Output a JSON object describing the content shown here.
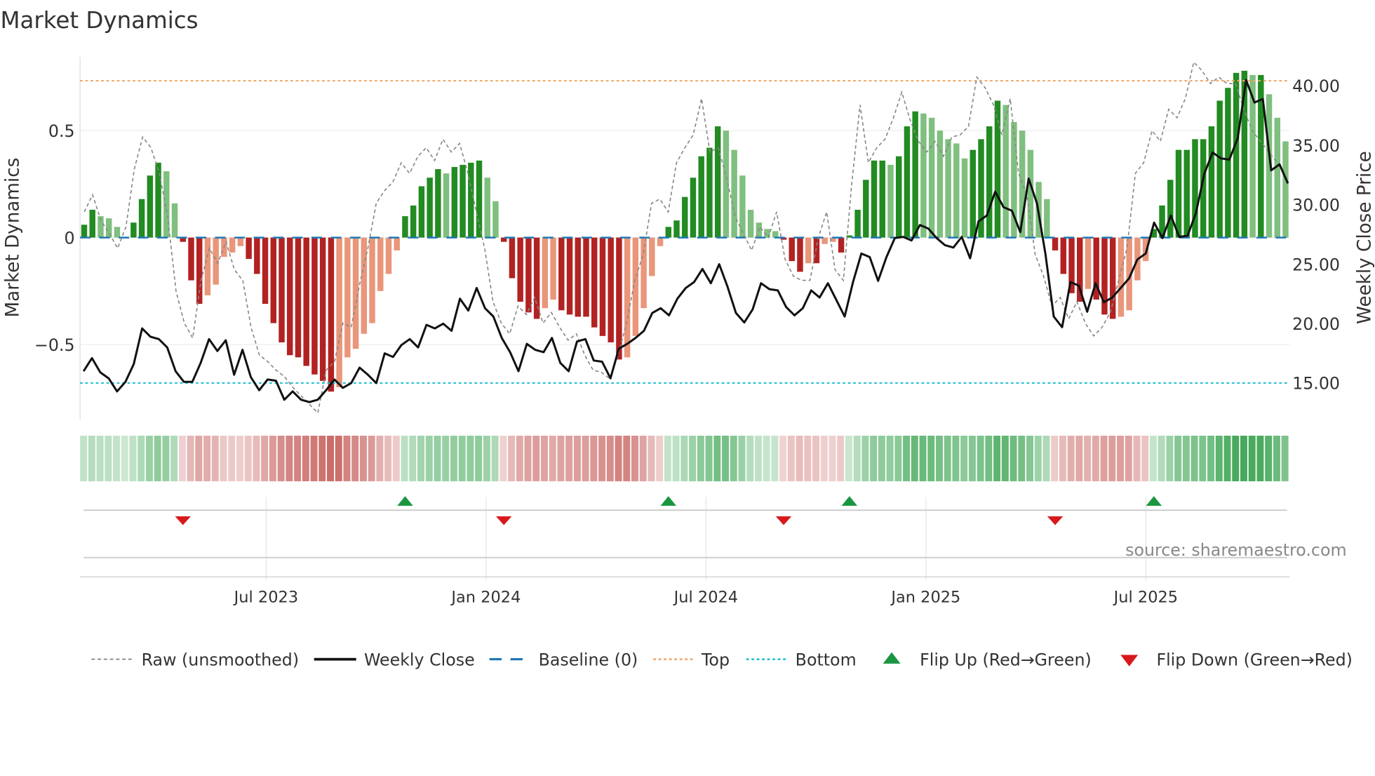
{
  "chart_data": {
    "type": "bar",
    "title": "Market Dynamics",
    "ylabel": "Market Dynamics",
    "y2label": "Weekly Close Price",
    "ylim": [
      -0.82,
      0.86
    ],
    "y2lim": [
      12.5,
      43.0
    ],
    "yticks": [
      {
        "v": 0.5,
        "label": "0.5"
      },
      {
        "v": 0,
        "label": "0"
      },
      {
        "v": -0.5,
        "label": "−0.5"
      }
    ],
    "y2ticks": [
      {
        "v": 40,
        "label": "40.00"
      },
      {
        "v": 35,
        "label": "35.00"
      },
      {
        "v": 30,
        "label": "30.00"
      },
      {
        "v": 25,
        "label": "25.00"
      },
      {
        "v": 20,
        "label": "20.00"
      },
      {
        "v": 15,
        "label": "15.00"
      }
    ],
    "x_start_week": 0,
    "x_weeks_total": 143,
    "xticks": [
      {
        "week": 22,
        "label": "Jul 2023"
      },
      {
        "week": 48,
        "label": "Jan 2024"
      },
      {
        "week": 74,
        "label": "Jul 2024"
      },
      {
        "week": 100,
        "label": "Jan 2025"
      },
      {
        "week": 126,
        "label": "Jul 2025"
      }
    ],
    "top": 0.733,
    "bottom": -0.68,
    "baseline": 0,
    "dynamics": [
      0.06,
      0.13,
      0.1,
      0.09,
      0.05,
      0.0,
      0.07,
      0.18,
      0.29,
      0.35,
      0.31,
      0.16,
      -0.02,
      -0.2,
      -0.31,
      -0.27,
      -0.22,
      -0.09,
      -0.07,
      -0.04,
      -0.1,
      -0.17,
      -0.31,
      -0.4,
      -0.49,
      -0.55,
      -0.56,
      -0.6,
      -0.64,
      -0.67,
      -0.72,
      -0.7,
      -0.56,
      -0.52,
      -0.45,
      -0.4,
      -0.25,
      -0.17,
      -0.06,
      0.1,
      0.15,
      0.24,
      0.28,
      0.32,
      0.3,
      0.33,
      0.34,
      0.35,
      0.36,
      0.28,
      0.17,
      -0.02,
      -0.19,
      -0.3,
      -0.35,
      -0.38,
      -0.33,
      -0.29,
      -0.34,
      -0.36,
      -0.37,
      -0.37,
      -0.42,
      -0.46,
      -0.49,
      -0.57,
      -0.56,
      -0.46,
      -0.33,
      -0.18,
      -0.04,
      0.05,
      0.08,
      0.19,
      0.28,
      0.38,
      0.42,
      0.52,
      0.5,
      0.41,
      0.29,
      0.13,
      0.07,
      0.04,
      0.03,
      -0.01,
      -0.11,
      -0.16,
      -0.12,
      -0.12,
      -0.03,
      -0.02,
      -0.07,
      0.01,
      0.13,
      0.27,
      0.36,
      0.36,
      0.34,
      0.38,
      0.52,
      0.59,
      0.58,
      0.56,
      0.5,
      0.46,
      0.44,
      0.37,
      0.41,
      0.46,
      0.52,
      0.64,
      0.62,
      0.54,
      0.5,
      0.41,
      0.26,
      0.18,
      -0.06,
      -0.17,
      -0.26,
      -0.3,
      -0.24,
      -0.29,
      -0.36,
      -0.38,
      -0.37,
      -0.34,
      -0.2,
      -0.11,
      0.04,
      0.15,
      0.27,
      0.41,
      0.41,
      0.46,
      0.46,
      0.52,
      0.64,
      0.7,
      0.77,
      0.78,
      0.76,
      0.76,
      0.67,
      0.56,
      0.45
    ],
    "raw": [
      0.12,
      0.2,
      0.08,
      0.02,
      -0.05,
      0.05,
      0.32,
      0.47,
      0.42,
      0.3,
      0.1,
      -0.25,
      -0.4,
      -0.47,
      -0.2,
      -0.05,
      -0.12,
      -0.02,
      -0.15,
      -0.2,
      -0.42,
      -0.55,
      -0.58,
      -0.62,
      -0.65,
      -0.7,
      -0.74,
      -0.78,
      -0.82,
      -0.62,
      -0.58,
      -0.4,
      -0.42,
      -0.22,
      -0.05,
      0.16,
      0.22,
      0.26,
      0.35,
      0.3,
      0.38,
      0.42,
      0.36,
      0.46,
      0.4,
      0.44,
      0.3,
      0.12,
      -0.05,
      -0.3,
      -0.4,
      -0.45,
      -0.32,
      -0.36,
      -0.28,
      -0.4,
      -0.35,
      -0.42,
      -0.48,
      -0.45,
      -0.55,
      -0.62,
      -0.63,
      -0.66,
      -0.55,
      -0.4,
      -0.2,
      -0.08,
      0.16,
      0.18,
      0.12,
      0.35,
      0.42,
      0.48,
      0.65,
      0.4,
      0.42,
      0.28,
      0.1,
      0.02,
      -0.06,
      0.05,
      0.0,
      0.12,
      -0.1,
      -0.18,
      -0.2,
      -0.2,
      0.0,
      0.12,
      -0.15,
      -0.2,
      0.25,
      0.62,
      0.35,
      0.42,
      0.46,
      0.56,
      0.68,
      0.55,
      0.45,
      0.4,
      0.45,
      0.38,
      0.47,
      0.48,
      0.52,
      0.75,
      0.7,
      0.62,
      0.48,
      0.65,
      0.3,
      0.2,
      -0.08,
      -0.18,
      -0.32,
      -0.28,
      -0.38,
      -0.3,
      -0.4,
      -0.46,
      -0.42,
      -0.35,
      -0.2,
      -0.05,
      0.3,
      0.35,
      0.5,
      0.45,
      0.6,
      0.56,
      0.65,
      0.82,
      0.78,
      0.72,
      0.75,
      0.72,
      0.72,
      0.6,
      0.5,
      0.45,
      0.4,
      0.35,
      0.3
    ],
    "weekly_close": [
      16.0,
      17.1,
      15.9,
      15.4,
      14.3,
      15.1,
      16.6,
      19.6,
      18.9,
      18.7,
      18.0,
      16.0,
      15.1,
      15.1,
      16.7,
      18.7,
      17.7,
      18.6,
      15.7,
      17.8,
      15.5,
      14.4,
      15.3,
      15.2,
      13.6,
      14.3,
      13.6,
      13.4,
      13.6,
      14.4,
      15.3,
      14.6,
      15.0,
      16.3,
      15.7,
      15.0,
      17.5,
      17.2,
      18.2,
      18.7,
      18.0,
      19.9,
      19.6,
      20.0,
      19.4,
      22.1,
      21.1,
      23.0,
      21.3,
      20.6,
      18.8,
      17.6,
      16.0,
      18.3,
      17.8,
      17.6,
      18.8,
      16.7,
      16.0,
      18.5,
      18.7,
      16.9,
      16.8,
      15.4,
      17.9,
      18.3,
      18.8,
      19.4,
      20.9,
      21.3,
      20.7,
      22.1,
      23.0,
      23.5,
      24.6,
      23.4,
      25.0,
      23.1,
      20.9,
      20.1,
      21.2,
      23.4,
      22.9,
      22.8,
      21.4,
      20.7,
      21.3,
      22.8,
      22.2,
      23.4,
      22.0,
      20.6,
      23.5,
      25.9,
      25.6,
      23.6,
      25.6,
      27.2,
      27.3,
      27.0,
      28.3,
      28.0,
      27.2,
      26.6,
      26.4,
      27.3,
      25.5,
      28.6,
      29.1,
      31.1,
      29.8,
      29.5,
      27.7,
      32.2,
      30.1,
      25.9,
      20.6,
      19.7,
      23.5,
      23.2,
      21.0,
      23.4,
      21.8,
      22.2,
      23.0,
      23.8,
      25.4,
      25.9,
      28.5,
      27.2,
      29.1,
      27.3,
      27.4,
      29.3,
      32.6,
      34.4,
      33.9,
      33.8,
      35.6,
      40.5,
      38.6,
      38.9,
      32.9,
      33.4,
      31.8
    ],
    "flip_up_label": "Flip Up (Red→Green)",
    "flip_down_label": "Flip Down (Green→Red)",
    "legend": {
      "raw": "Raw (unsmoothed)",
      "close": "Weekly Close",
      "baseline": "Baseline (0)",
      "top": "Top",
      "bottom": "Bottom",
      "flip_up": "Flip Up (Red→Green)",
      "flip_down": "Flip Down (Green→Red)"
    },
    "colors": {
      "pos_rising": "#228b22",
      "pos_falling": "#7fbf7f",
      "neg_falling": "#b22222",
      "neg_rising": "#e9967a",
      "close": "#111111",
      "raw": "#888888",
      "baseline": "#1f77b4",
      "top": "#f4a460",
      "bottom": "#17becf",
      "flip_up": "#1a9641",
      "flip_down": "#d7191c"
    }
  },
  "source": "source: sharemaestro.com"
}
